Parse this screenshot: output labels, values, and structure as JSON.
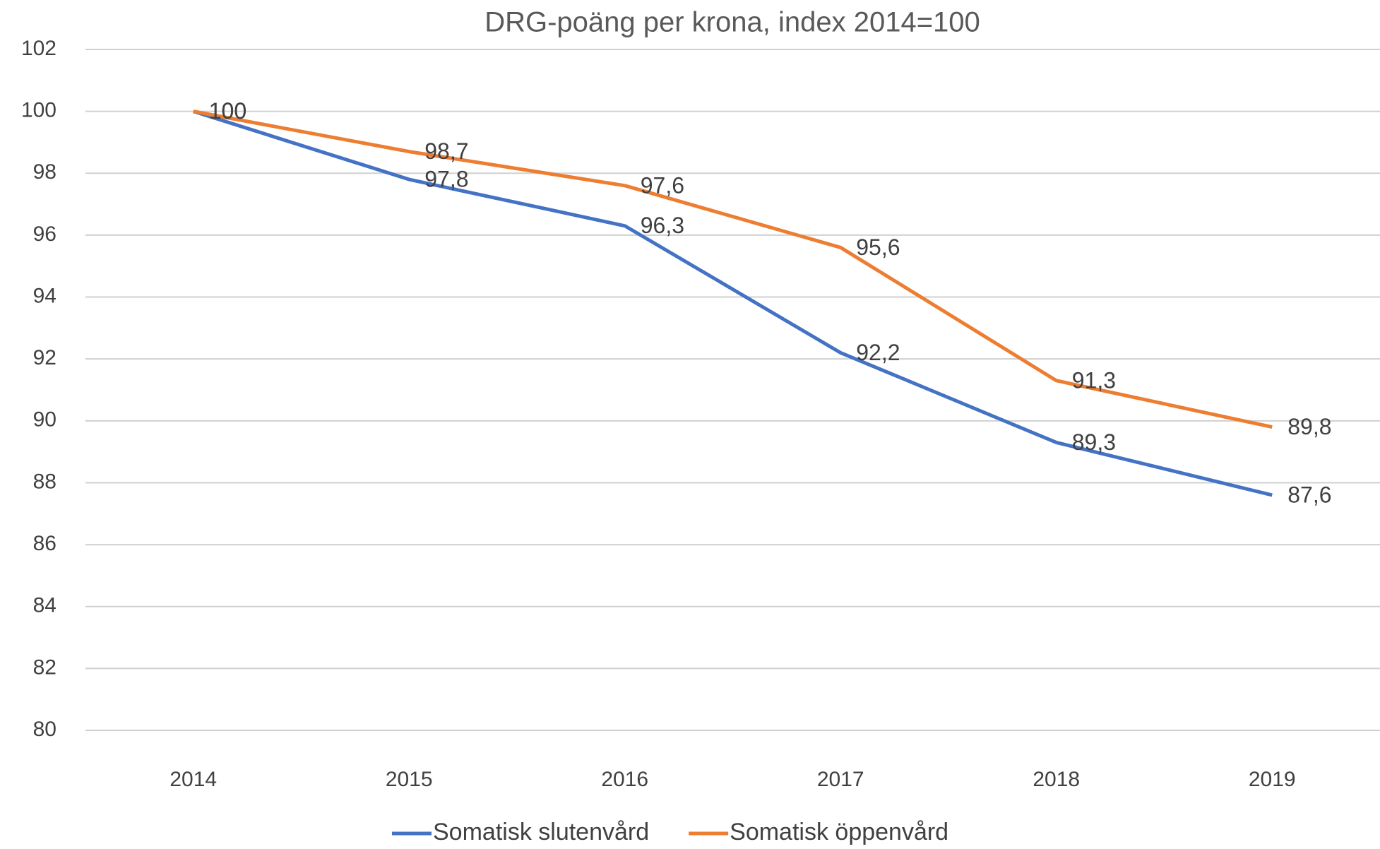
{
  "chart_data": {
    "type": "line",
    "title": "DRG-poäng per krona, index 2014=100",
    "categories": [
      "2014",
      "2015",
      "2016",
      "2017",
      "2018",
      "2019"
    ],
    "series": [
      {
        "name": "Somatisk slutenvård",
        "color": "#4472c4",
        "values": [
          100,
          97.8,
          96.3,
          92.2,
          89.3,
          87.6
        ],
        "value_labels": [
          "100",
          "97,8",
          "96,3",
          "92,2",
          "89,3",
          "87,6"
        ]
      },
      {
        "name": "Somatisk öppenvård",
        "color": "#ed7d31",
        "values": [
          100,
          98.7,
          97.6,
          95.6,
          91.3,
          89.8
        ],
        "value_labels": [
          "100",
          "98,7",
          "97,6",
          "95,6",
          "91,3",
          "89,8"
        ]
      }
    ],
    "ylim": [
      80,
      102
    ],
    "yticks": [
      80,
      82,
      84,
      86,
      88,
      90,
      92,
      94,
      96,
      98,
      100,
      102
    ],
    "grid": true,
    "legend": "bottom"
  }
}
